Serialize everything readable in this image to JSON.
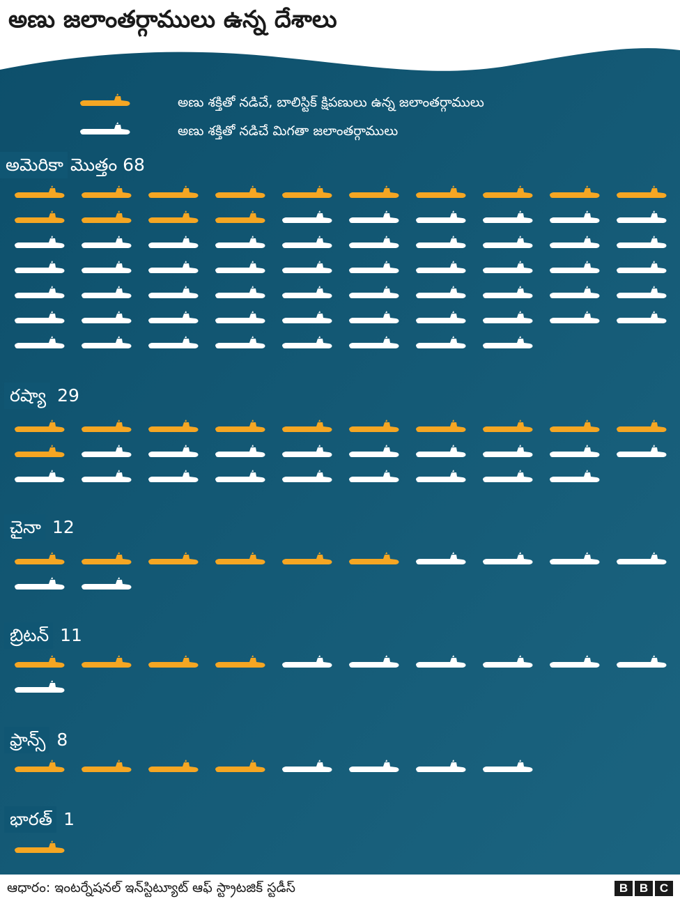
{
  "title": "అణు జలాంతర్గాములు ఉన్న దేశాలు",
  "legend": {
    "ballistic": "అణు శక్తితో నడిచే, బాలిస్టిక్ క్షిపణులు ఉన్న జలాంతర్గాములు",
    "other": "అణు శక్తితో నడిచే మిగతా జలాంతర్గాములు"
  },
  "colors": {
    "ballistic": "#f5a623",
    "other": "#ffffff",
    "background_dark": "#0d4f6b",
    "background_light": "#1b6480"
  },
  "icon": "submarine-icon",
  "chart_data": {
    "type": "pictograph",
    "units_per_icon": 1,
    "series": [
      {
        "name": "అణు శక్తితో నడిచే, బాలిస్టిక్ క్షిపణులు ఉన్న జలాంతర్గాములు",
        "key": "ballistic"
      },
      {
        "name": "అణు శక్తితో నడిచే మిగతా జలాంతర్గాములు",
        "key": "other"
      }
    ],
    "countries": [
      {
        "name": "అమెరికా",
        "total_label": "మొత్తం 68",
        "ballistic": 14,
        "other": 54
      },
      {
        "name": "రష్యా",
        "total_label": "29",
        "ballistic": 11,
        "other": 18
      },
      {
        "name": "చైనా",
        "total_label": "12",
        "ballistic": 6,
        "other": 6
      },
      {
        "name": "బ్రిటన్",
        "total_label": "11",
        "ballistic": 4,
        "other": 7
      },
      {
        "name": "ఫ్రాన్స్",
        "total_label": "8",
        "ballistic": 4,
        "other": 4
      },
      {
        "name": "భారత్",
        "total_label": "1",
        "ballistic": 1,
        "other": 0
      }
    ]
  },
  "footer": {
    "source": "ఆధారం: ఇంటర్నేషనల్ ఇన్‌స్టిట్యూట్ ఆఫ్ స్ట్రాటజిక్ స్టడీస్",
    "logo": [
      "B",
      "B",
      "C"
    ]
  }
}
